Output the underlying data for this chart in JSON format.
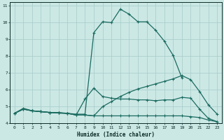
{
  "xlabel": "Humidex (Indice chaleur)",
  "bg_color": "#cce8e5",
  "grid_color": "#aacfcc",
  "line_color": "#1a6b60",
  "xlim": [
    -0.5,
    23.5
  ],
  "ylim": [
    4,
    11.2
  ],
  "xticks": [
    0,
    1,
    2,
    3,
    4,
    5,
    6,
    7,
    8,
    9,
    10,
    11,
    12,
    13,
    14,
    15,
    16,
    17,
    18,
    19,
    20,
    21,
    22,
    23
  ],
  "yticks": [
    4,
    5,
    6,
    7,
    8,
    9,
    10,
    11
  ],
  "series": [
    {
      "x": [
        0,
        1,
        2,
        3,
        4,
        5,
        6,
        7,
        8,
        9,
        10,
        11,
        12,
        13,
        14,
        15,
        16,
        17,
        18,
        19,
        20,
        21,
        22,
        23
      ],
      "y": [
        4.6,
        4.9,
        4.75,
        4.7,
        4.65,
        4.65,
        4.6,
        4.55,
        4.55,
        9.4,
        10.05,
        10.0,
        10.8,
        10.5,
        10.05,
        10.05,
        9.55,
        8.9,
        8.05,
        6.7,
        null,
        null,
        null,
        null
      ]
    },
    {
      "x": [
        0,
        1,
        2,
        3,
        4,
        5,
        6,
        7,
        8,
        9,
        10,
        11,
        12,
        13,
        14,
        15,
        16,
        17,
        18,
        19,
        20,
        21,
        22,
        23
      ],
      "y": [
        4.6,
        4.85,
        4.75,
        4.7,
        4.65,
        4.62,
        4.6,
        4.5,
        5.45,
        6.1,
        5.6,
        5.5,
        5.45,
        5.45,
        5.4,
        5.4,
        5.35,
        5.4,
        5.4,
        5.55,
        5.5,
        4.85,
        4.3,
        4.1
      ]
    },
    {
      "x": [
        0,
        1,
        2,
        3,
        4,
        5,
        6,
        7,
        8,
        9,
        10,
        11,
        12,
        13,
        14,
        15,
        16,
        17,
        18,
        19,
        20,
        21,
        22,
        23
      ],
      "y": [
        4.6,
        4.85,
        4.75,
        4.7,
        4.65,
        4.62,
        4.6,
        4.5,
        4.5,
        4.45,
        4.45,
        4.45,
        4.45,
        4.45,
        4.45,
        4.45,
        4.45,
        4.45,
        4.45,
        4.45,
        4.4,
        4.35,
        4.2,
        4.1
      ]
    },
    {
      "x": [
        0,
        1,
        2,
        3,
        4,
        5,
        6,
        7,
        8,
        9,
        10,
        11,
        12,
        13,
        14,
        15,
        16,
        17,
        18,
        19,
        20,
        21,
        22,
        23
      ],
      "y": [
        4.6,
        4.85,
        4.75,
        4.7,
        4.65,
        4.62,
        4.6,
        4.5,
        4.5,
        4.45,
        5.0,
        5.3,
        5.6,
        5.85,
        6.05,
        6.2,
        6.35,
        6.5,
        6.65,
        6.85,
        6.6,
        5.9,
        5.1,
        4.55
      ]
    }
  ]
}
